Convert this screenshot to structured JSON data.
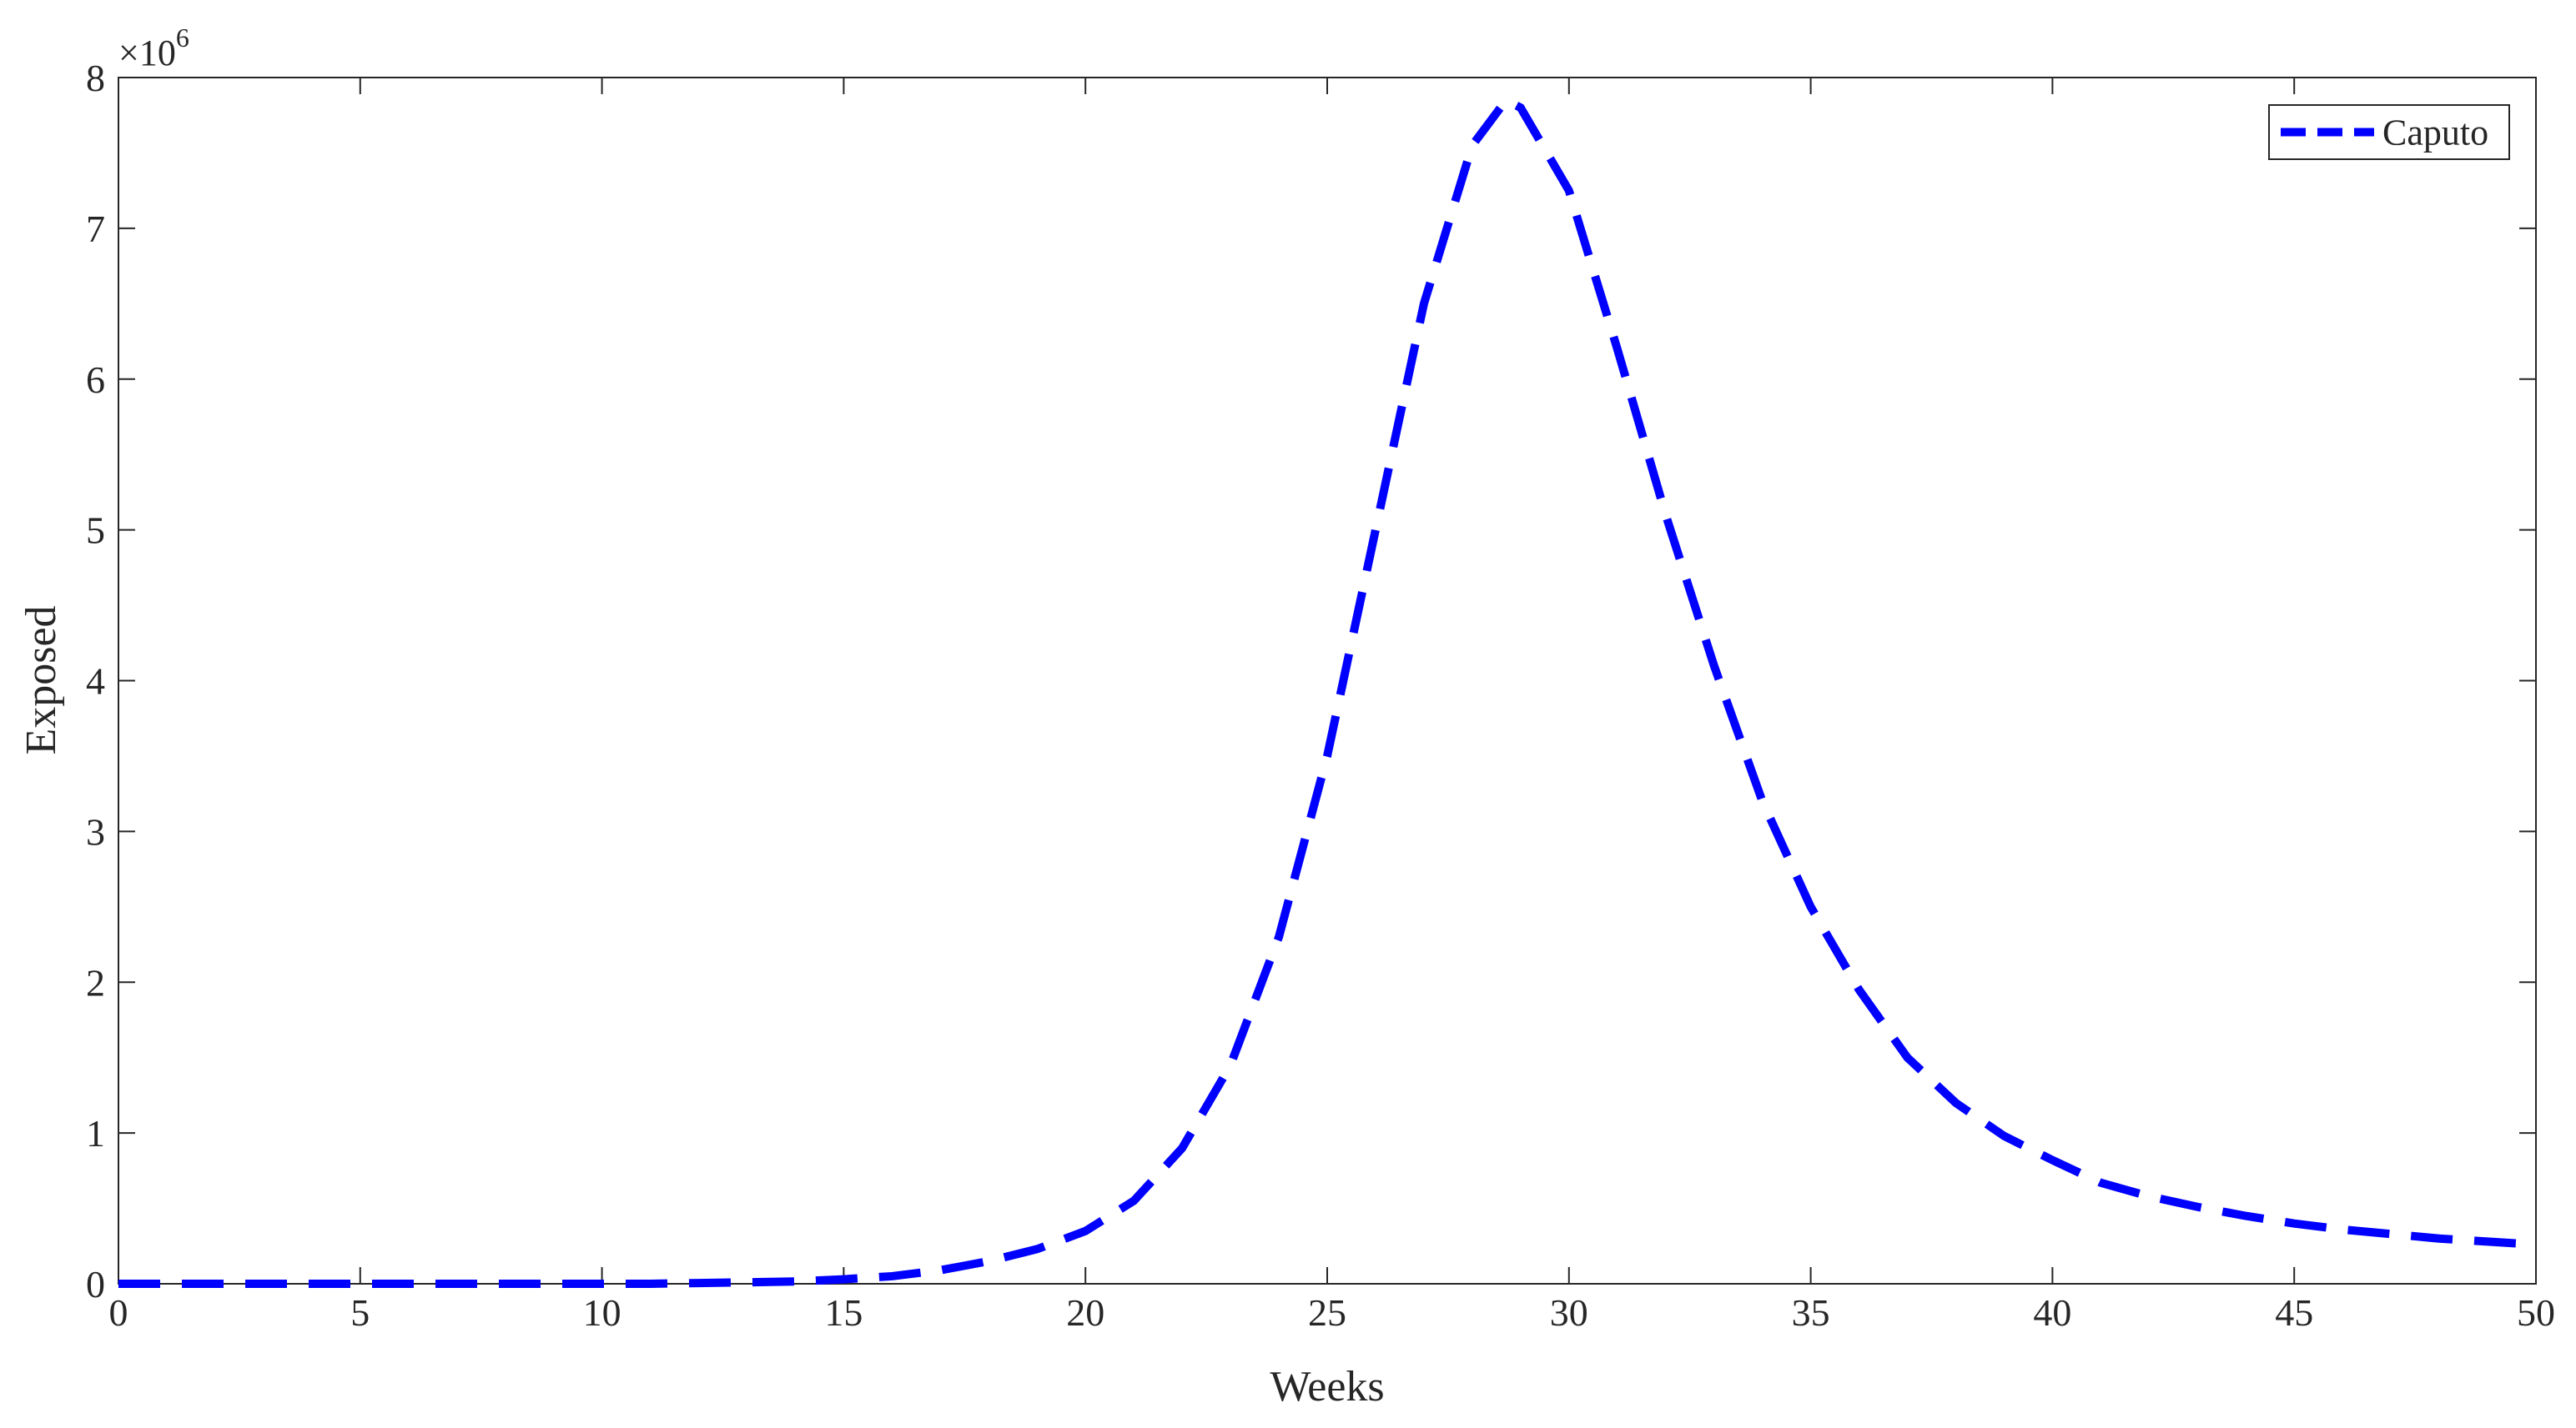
{
  "chart_data": {
    "type": "line",
    "x_label": "Weeks",
    "y_label": "Exposed",
    "y_multiplier": {
      "base": "×10",
      "power": "6"
    },
    "x": [
      0,
      1,
      2,
      3,
      4,
      5,
      6,
      7,
      8,
      9,
      10,
      11,
      12,
      13,
      14,
      15,
      16,
      17,
      18,
      19,
      20,
      21,
      22,
      23,
      24,
      25,
      26,
      27,
      28,
      28.7,
      29,
      30,
      31,
      32,
      33,
      34,
      35,
      36,
      37,
      38,
      39,
      40,
      41,
      42,
      43,
      44,
      45,
      46,
      47,
      48,
      49,
      50
    ],
    "series": [
      {
        "name": "Caputo",
        "color": "#0000ff",
        "values": [
          0,
          0,
          0,
          0,
          0,
          0,
          0,
          0,
          0,
          0,
          0,
          0,
          0.005,
          0.01,
          0.015,
          0.03,
          0.05,
          0.09,
          0.15,
          0.23,
          0.35,
          0.55,
          0.9,
          1.45,
          2.3,
          3.5,
          5.0,
          6.5,
          7.55,
          7.85,
          7.8,
          7.25,
          6.2,
          5.1,
          4.1,
          3.2,
          2.5,
          1.95,
          1.5,
          1.2,
          0.98,
          0.82,
          0.67,
          0.58,
          0.51,
          0.45,
          0.4,
          0.36,
          0.33,
          0.3,
          0.28,
          0.26
        ]
      }
    ],
    "xlim": [
      0,
      50
    ],
    "xticks": [
      0,
      5,
      10,
      15,
      20,
      25,
      30,
      35,
      40,
      45,
      50
    ],
    "ylim": [
      0,
      8
    ],
    "yticks": [
      0,
      1,
      2,
      3,
      4,
      5,
      6,
      7,
      8
    ],
    "grid": false,
    "legend": "upper right"
  }
}
